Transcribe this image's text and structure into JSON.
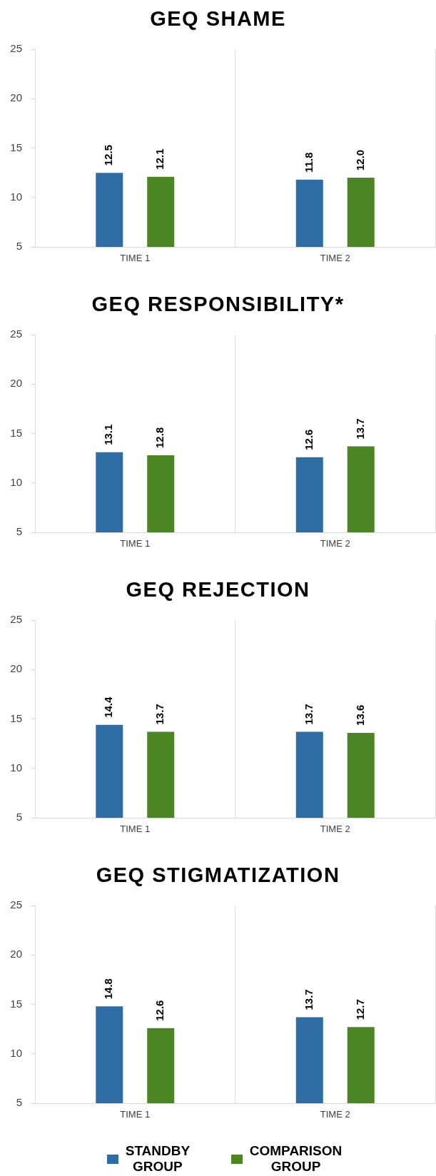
{
  "chart_data": [
    {
      "type": "bar",
      "title": "GEQ SHAME",
      "categories": [
        "TIME 1",
        "TIME 2"
      ],
      "series": [
        {
          "color": "#2e6ca4",
          "values": [
            12.5,
            11.8
          ],
          "value_labels": [
            "12.5",
            "11.8"
          ]
        },
        {
          "color": "#4b8623",
          "values": [
            12.1,
            12.0
          ],
          "value_labels": [
            "12.1",
            "12.0"
          ]
        }
      ],
      "ylim": [
        5,
        25
      ],
      "yticks": [
        5,
        10,
        15,
        20,
        25
      ],
      "grid": "x"
    },
    {
      "type": "bar",
      "title": "GEQ RESPONSIBILITY*",
      "categories": [
        "TIME 1",
        "TIME 2"
      ],
      "series": [
        {
          "color": "#2e6ca4",
          "values": [
            13.1,
            12.6
          ],
          "value_labels": [
            "13.1",
            "12.6"
          ]
        },
        {
          "color": "#4b8623",
          "values": [
            12.8,
            13.7
          ],
          "value_labels": [
            "12.8",
            "13.7"
          ]
        }
      ],
      "ylim": [
        5,
        25
      ],
      "yticks": [
        5,
        10,
        15,
        20,
        25
      ],
      "grid": "x"
    },
    {
      "type": "bar",
      "title": "GEQ REJECTION",
      "categories": [
        "TIME 1",
        "TIME 2"
      ],
      "series": [
        {
          "color": "#2e6ca4",
          "values": [
            14.4,
            13.7
          ],
          "value_labels": [
            "14.4",
            "13.7"
          ]
        },
        {
          "color": "#4b8623",
          "values": [
            13.7,
            13.6
          ],
          "value_labels": [
            "13.7",
            "13.6"
          ]
        }
      ],
      "ylim": [
        5,
        25
      ],
      "yticks": [
        5,
        10,
        15,
        20,
        25
      ],
      "grid": "x"
    },
    {
      "type": "bar",
      "title": "GEQ STIGMATIZATION",
      "categories": [
        "TIME 1",
        "TIME 2"
      ],
      "series": [
        {
          "name": "STANDBY GROUP",
          "color": "#2e6ca4",
          "values": [
            14.8,
            13.7
          ],
          "value_labels": [
            "14.8",
            "13.7"
          ]
        },
        {
          "name": "COMPARISON GROUP",
          "color": "#4b8623",
          "values": [
            12.6,
            12.7
          ],
          "value_labels": [
            "12.6",
            "12.7"
          ]
        }
      ],
      "ylim": [
        5,
        25
      ],
      "yticks": [
        5,
        10,
        15,
        20,
        25
      ],
      "grid": "x",
      "legend": "bottom"
    }
  ]
}
